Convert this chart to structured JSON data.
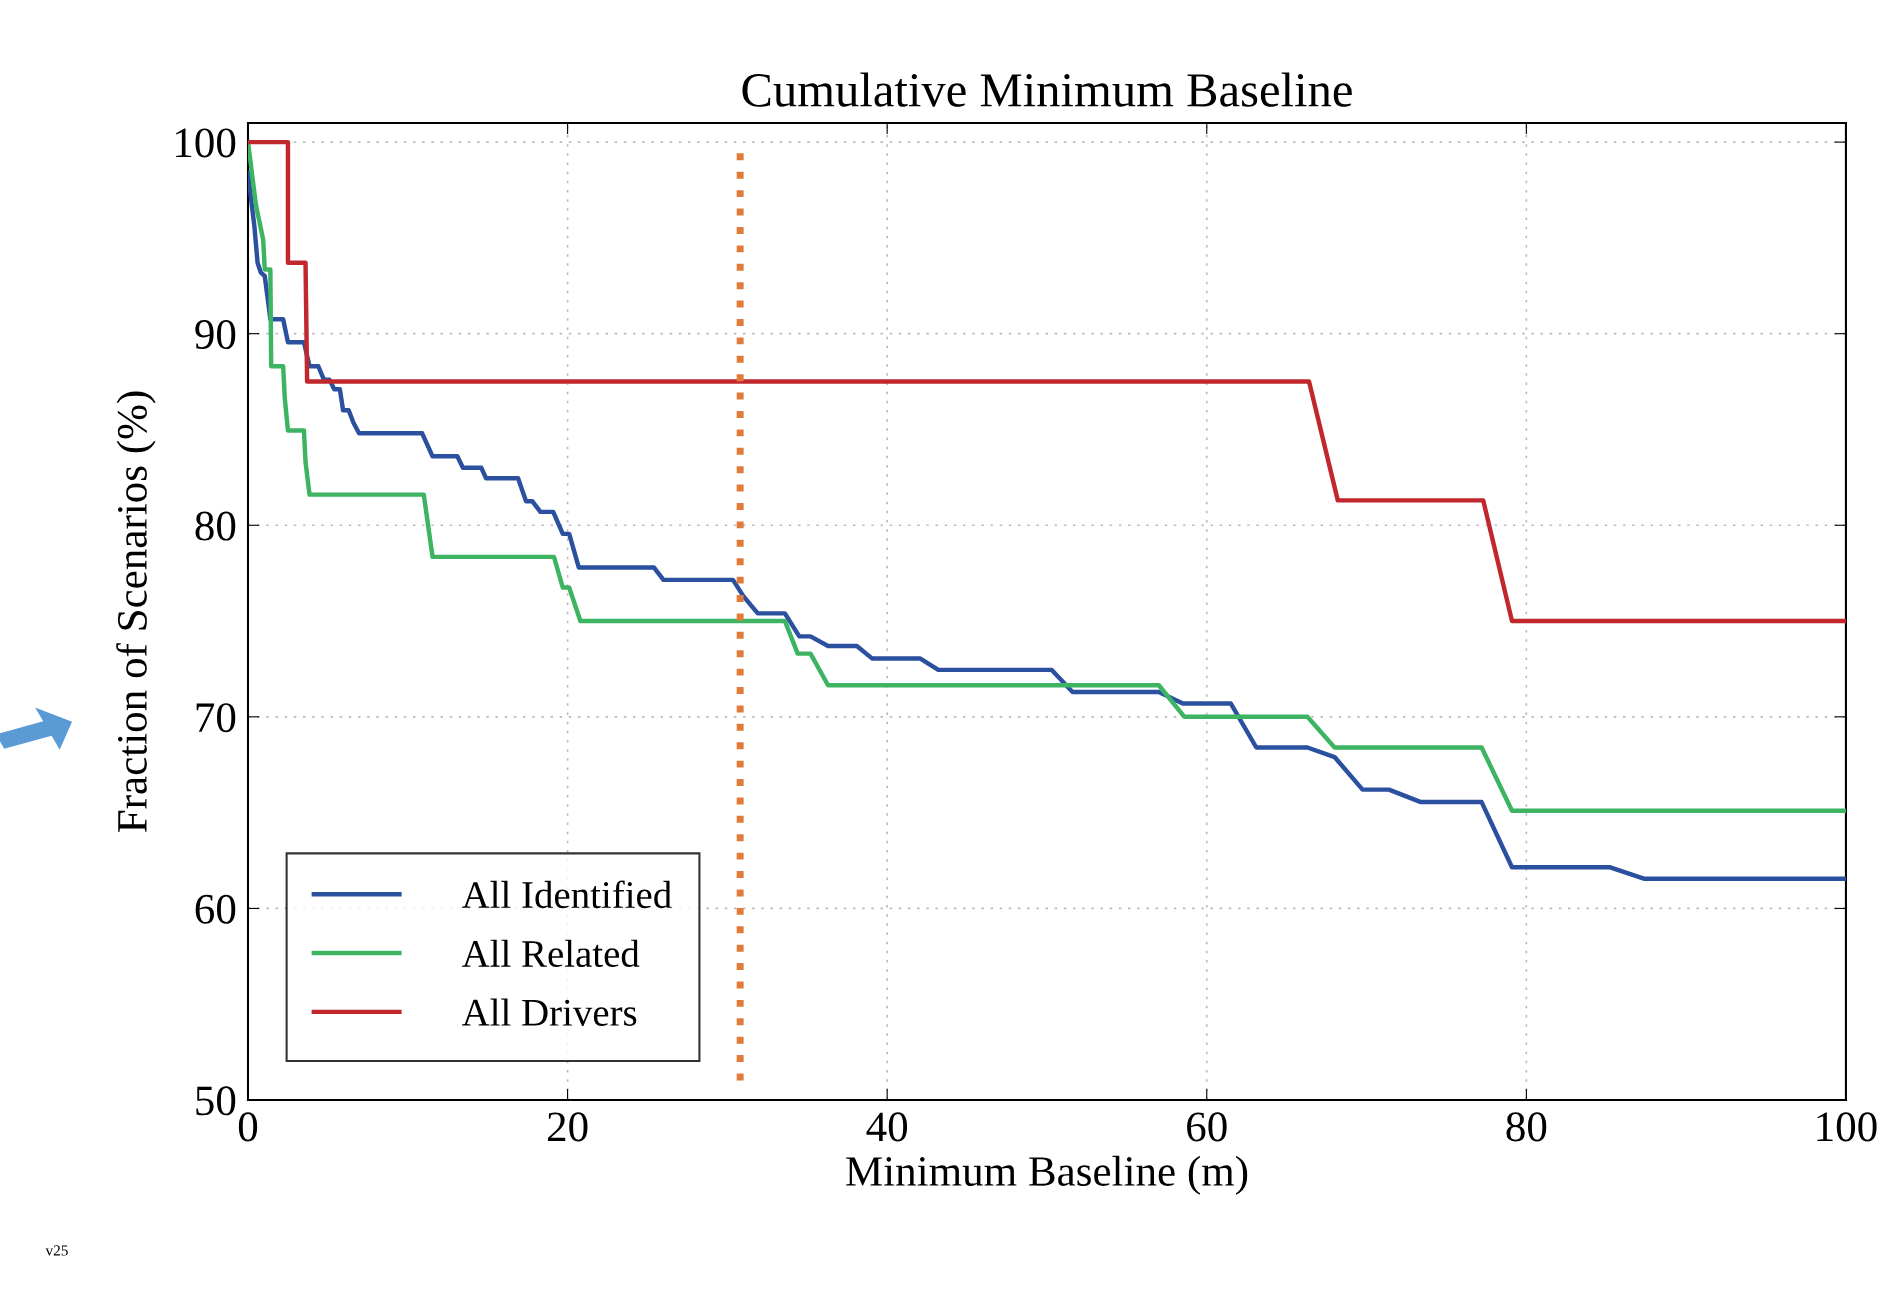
{
  "chart_data": {
    "type": "line",
    "title": "Cumulative Minimum Baseline",
    "xlabel": "Minimum Baseline (m)",
    "ylabel": "Fraction of Scenarios (%)",
    "xlim": [
      0,
      100
    ],
    "xticks": [
      0,
      20,
      40,
      60,
      80,
      100
    ],
    "ylim": [
      50,
      101
    ],
    "yticks": [
      50,
      60,
      70,
      80,
      90,
      100
    ],
    "grid": true,
    "legend": "bottom left",
    "line_style": "solid",
    "marker": "none",
    "series": [
      {
        "name": "All Identified",
        "color": "#2b50a0",
        "x": [
          0,
          0.4,
          0.6,
          0.8,
          1.05,
          1.4,
          2.2,
          2.5,
          3.5,
          3.85,
          4.4,
          4.75,
          5.1,
          5.4,
          5.75,
          5.95,
          6.3,
          6.6,
          6.95,
          10.9,
          11.55,
          13.1,
          13.45,
          14.6,
          14.9,
          16.9,
          17.4,
          17.8,
          18.3,
          19.1,
          19.7,
          20.1,
          20.7,
          25.4,
          26.0,
          30.35,
          31.0,
          31.9,
          33.6,
          34.5,
          35.2,
          36.3,
          38.1,
          39.05,
          42.05,
          43.2,
          50.3,
          51.6,
          57.0,
          58.5,
          61.5,
          63.1,
          66.3,
          68.0,
          69.75,
          71.4,
          73.4,
          77.2,
          79.1,
          85.2,
          87.35,
          100
        ],
        "values": [
          98.4,
          95.6,
          93.7,
          93.2,
          93.0,
          90.75,
          90.75,
          89.55,
          89.55,
          88.3,
          88.3,
          87.6,
          87.6,
          87.1,
          87.1,
          86.0,
          86.0,
          85.35,
          84.8,
          84.8,
          83.6,
          83.6,
          83.0,
          83.0,
          82.45,
          82.45,
          81.25,
          81.25,
          80.7,
          80.7,
          79.55,
          79.55,
          77.8,
          77.8,
          77.15,
          77.15,
          76.3,
          75.4,
          75.4,
          74.2,
          74.2,
          73.7,
          73.7,
          73.05,
          73.05,
          72.45,
          72.45,
          71.3,
          71.3,
          70.7,
          70.7,
          68.4,
          68.4,
          67.9,
          66.2,
          66.2,
          65.55,
          65.55,
          62.15,
          62.15,
          61.55,
          61.55
        ]
      },
      {
        "name": "All Related",
        "color": "#3cb462",
        "x": [
          0,
          0.5,
          0.95,
          1.05,
          1.4,
          1.45,
          2.2,
          2.3,
          2.5,
          3.5,
          3.6,
          3.85,
          11.0,
          11.55,
          19.15,
          19.7,
          20.1,
          20.8,
          33.6,
          34.4,
          35.2,
          36.3,
          57.0,
          58.6,
          66.3,
          68.0,
          77.2,
          79.1,
          100
        ],
        "values": [
          100,
          96.7,
          94.9,
          93.35,
          93.35,
          88.3,
          88.3,
          86.65,
          84.95,
          84.95,
          83.3,
          81.6,
          81.6,
          78.35,
          78.35,
          76.75,
          76.75,
          75.0,
          75.0,
          73.3,
          73.3,
          71.65,
          71.65,
          70.0,
          70.0,
          68.4,
          68.4,
          65.1,
          65.1
        ]
      },
      {
        "name": "All Drivers",
        "color": "#c0282d",
        "x": [
          0,
          2.5,
          2.5,
          3.6,
          3.7,
          66.4,
          68.2,
          77.3,
          79.1,
          100
        ],
        "values": [
          100,
          100,
          93.7,
          93.7,
          87.5,
          87.5,
          81.3,
          81.3,
          75.0,
          75.0
        ]
      }
    ],
    "ref_lines": [
      {
        "axis": "x",
        "value": 30.8,
        "color": "#e07b39",
        "line_style": "dotted"
      }
    ],
    "annotations": [
      "v25"
    ]
  }
}
